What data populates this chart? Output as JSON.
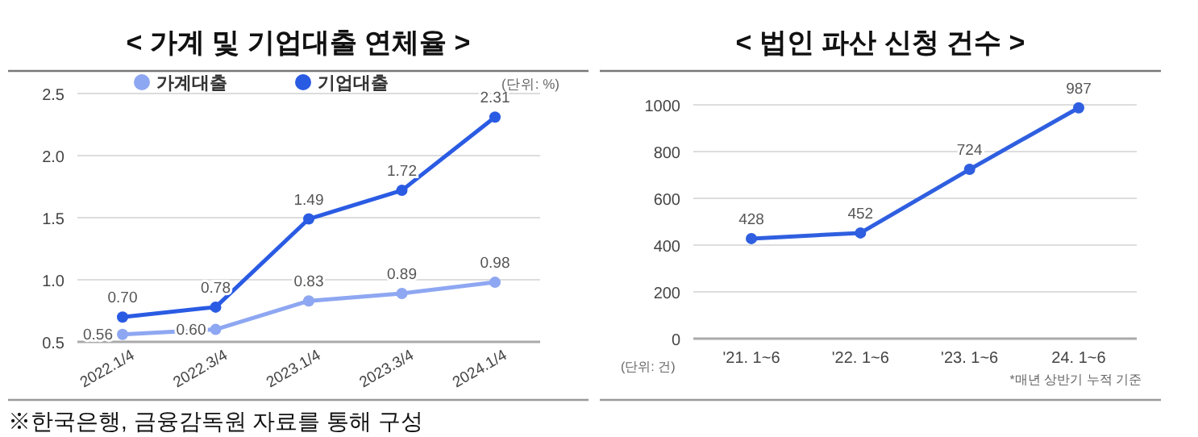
{
  "chart_data": [
    {
      "type": "line",
      "title": "< 가계 및 기업대출 연체율 >",
      "categories": [
        "2022.1/4",
        "2022.3/4",
        "2023.1/4",
        "2023.3/4",
        "2024.1/4"
      ],
      "series": [
        {
          "name": "가계대출",
          "color": "#8ea7f2",
          "values": [
            0.56,
            0.6,
            0.83,
            0.89,
            0.98
          ],
          "value_labels": [
            "0.56",
            "0.60",
            "0.83",
            "0.89",
            "0.98"
          ]
        },
        {
          "name": "기업대출",
          "color": "#2a5be3",
          "values": [
            0.7,
            0.78,
            1.49,
            1.72,
            2.31
          ],
          "value_labels": [
            "0.70",
            "0.78",
            "1.49",
            "1.72",
            "2.31"
          ]
        }
      ],
      "ylim": [
        0.5,
        2.5
      ],
      "yticks": [
        {
          "value": 0.5,
          "label": "0.5"
        },
        {
          "value": 1,
          "label": "1.0"
        },
        {
          "value": 1.5,
          "label": "1.5"
        },
        {
          "value": 2,
          "label": "2.0"
        },
        {
          "value": 2.5,
          "label": "2.5"
        }
      ],
      "grid": "y",
      "legend": "top",
      "marker": "circle",
      "line_style": "solid",
      "data_labels": true,
      "annotations": [
        "(단위: %)",
        "※한국은행, 금융감독원 자료를 통해 구성"
      ]
    },
    {
      "type": "line",
      "title": "< 법인 파산 신청 건수 >",
      "categories": [
        "'21. 1~6",
        "'22. 1~6",
        "'23. 1~6",
        "24. 1~6"
      ],
      "series": [
        {
          "color": "#2f5fe0",
          "values": [
            428,
            452,
            724,
            987
          ]
        }
      ],
      "ylim": [
        0,
        1000
      ],
      "yticks": [
        0,
        200,
        400,
        600,
        800,
        1000
      ],
      "grid": "y",
      "marker": "circle",
      "line_style": "solid",
      "data_labels": true,
      "annotations": [
        "(단위: 건)",
        "*매년 상반기 누적 기준"
      ]
    }
  ]
}
